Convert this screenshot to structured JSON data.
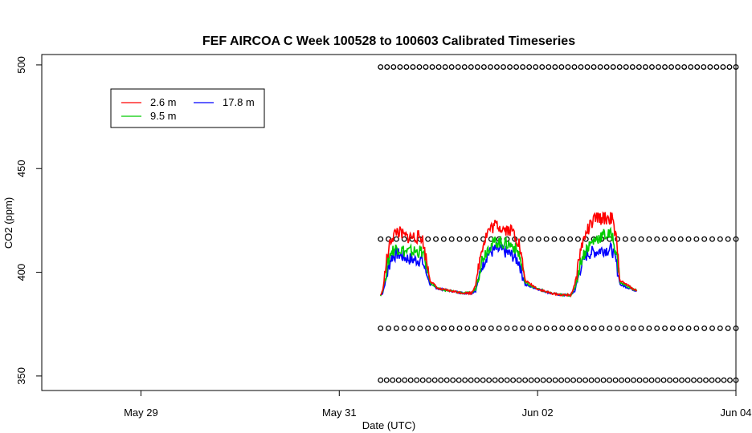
{
  "chart_data": {
    "type": "line",
    "title": "FEF AIRCOA C  Week 100528 to 100603  Calibrated Timeseries",
    "xlabel": "Date (UTC)",
    "ylabel": "CO2 (ppm)",
    "xlim": [
      "2010-05-28T00:00",
      "2010-06-04T00:00"
    ],
    "ylim": [
      343,
      505
    ],
    "x_ticks": [
      {
        "value": "2010-05-29T00:00",
        "label": "May 29"
      },
      {
        "value": "2010-05-31T00:00",
        "label": "May 31"
      },
      {
        "value": "2010-06-02T00:00",
        "label": "Jun 02"
      },
      {
        "value": "2010-06-04T00:00",
        "label": "Jun 04"
      }
    ],
    "y_ticks": [
      350,
      400,
      450,
      500
    ],
    "grid": false,
    "legend": {
      "placement": "top-left",
      "entries": [
        "2.6 m",
        "9.5 m",
        "17.8 m"
      ]
    },
    "series": [
      {
        "name": "2.6 m",
        "color": "#ff0000",
        "x": [
          "2010-05-31T10:00",
          "2010-05-31T10:30",
          "2010-05-31T11:30",
          "2010-05-31T12:30",
          "2010-05-31T14:00",
          "2010-05-31T16:00",
          "2010-05-31T18:00",
          "2010-05-31T20:00",
          "2010-05-31T21:00",
          "2010-05-31T22:00",
          "2010-06-01T00:00",
          "2010-06-01T03:00",
          "2010-06-01T06:00",
          "2010-06-01T08:00",
          "2010-06-01T09:00",
          "2010-06-01T10:30",
          "2010-06-01T12:00",
          "2010-06-01T14:00",
          "2010-06-01T16:00",
          "2010-06-01T18:00",
          "2010-06-01T19:30",
          "2010-06-01T21:00",
          "2010-06-02T00:00",
          "2010-06-02T03:00",
          "2010-06-02T06:00",
          "2010-06-02T08:00",
          "2010-06-02T09:00",
          "2010-06-02T10:30",
          "2010-06-02T12:00",
          "2010-06-02T14:00",
          "2010-06-02T16:00",
          "2010-06-02T18:00",
          "2010-06-02T19:00",
          "2010-06-02T20:00",
          "2010-06-03T00:00"
        ],
        "y": [
          389,
          391,
          406,
          416,
          420,
          417,
          417,
          417,
          407,
          396,
          392,
          391,
          390,
          390,
          394,
          412,
          420,
          423,
          421,
          420,
          414,
          396,
          392,
          390,
          389,
          389,
          394,
          412,
          420,
          426,
          426,
          426,
          416,
          396,
          391
        ]
      },
      {
        "name": "9.5 m",
        "color": "#00cc00",
        "x": [
          "2010-05-31T10:00",
          "2010-05-31T10:30",
          "2010-05-31T11:30",
          "2010-05-31T12:30",
          "2010-05-31T14:00",
          "2010-05-31T16:00",
          "2010-05-31T18:00",
          "2010-05-31T20:00",
          "2010-05-31T21:00",
          "2010-05-31T22:00",
          "2010-06-01T00:00",
          "2010-06-01T03:00",
          "2010-06-01T06:00",
          "2010-06-01T08:00",
          "2010-06-01T09:00",
          "2010-06-01T10:30",
          "2010-06-01T12:00",
          "2010-06-01T14:00",
          "2010-06-01T16:00",
          "2010-06-01T18:00",
          "2010-06-01T19:30",
          "2010-06-01T21:00",
          "2010-06-02T00:00",
          "2010-06-02T03:00",
          "2010-06-02T06:00",
          "2010-06-02T08:00",
          "2010-06-02T09:00",
          "2010-06-02T10:30",
          "2010-06-02T12:00",
          "2010-06-02T14:00",
          "2010-06-02T16:00",
          "2010-06-02T18:00",
          "2010-06-02T19:00",
          "2010-06-02T20:00",
          "2010-06-03T00:00"
        ],
        "y": [
          389,
          391,
          402,
          410,
          412,
          410,
          410,
          410,
          404,
          395,
          392,
          391,
          390,
          390,
          392,
          406,
          412,
          415,
          414,
          413,
          409,
          395,
          392,
          390,
          389,
          389,
          392,
          406,
          412,
          416,
          418,
          418,
          410,
          395,
          391
        ]
      },
      {
        "name": "17.8 m",
        "color": "#0000ff",
        "x": [
          "2010-05-31T10:00",
          "2010-05-31T10:30",
          "2010-05-31T11:30",
          "2010-05-31T12:30",
          "2010-05-31T14:00",
          "2010-05-31T16:00",
          "2010-05-31T18:00",
          "2010-05-31T20:00",
          "2010-05-31T21:00",
          "2010-05-31T22:00",
          "2010-06-01T00:00",
          "2010-06-01T03:00",
          "2010-06-01T06:00",
          "2010-06-01T08:00",
          "2010-06-01T09:00",
          "2010-06-01T10:30",
          "2010-06-01T12:00",
          "2010-06-01T14:00",
          "2010-06-01T16:00",
          "2010-06-01T18:00",
          "2010-06-01T19:30",
          "2010-06-01T21:00",
          "2010-06-02T00:00",
          "2010-06-02T03:00",
          "2010-06-02T06:00",
          "2010-06-02T08:00",
          "2010-06-02T09:00",
          "2010-06-02T10:30",
          "2010-06-02T12:00",
          "2010-06-02T14:00",
          "2010-06-02T16:00",
          "2010-06-02T18:00",
          "2010-06-02T19:00",
          "2010-06-02T20:00",
          "2010-06-03T00:00"
        ],
        "y": [
          389,
          390,
          398,
          407,
          409,
          407,
          406,
          406,
          400,
          394,
          392,
          391,
          390,
          390,
          391,
          403,
          409,
          411,
          410,
          408,
          405,
          394,
          392,
          390,
          389,
          389,
          391,
          403,
          409,
          410,
          411,
          411,
          405,
          394,
          391
        ]
      }
    ],
    "reference_points": {
      "marker": "o",
      "levels": [
        {
          "y": 499,
          "x_start": "2010-05-31T10:00",
          "x_end": "2010-06-04T00:00",
          "count": 56
        },
        {
          "y": 416,
          "x_start": "2010-05-31T10:00",
          "x_end": "2010-06-04T00:00",
          "count": 46
        },
        {
          "y": 373,
          "x_start": "2010-05-31T10:00",
          "x_end": "2010-06-04T00:00",
          "count": 46
        },
        {
          "y": 348,
          "x_start": "2010-05-31T10:00",
          "x_end": "2010-06-04T00:00",
          "count": 60
        }
      ]
    }
  }
}
